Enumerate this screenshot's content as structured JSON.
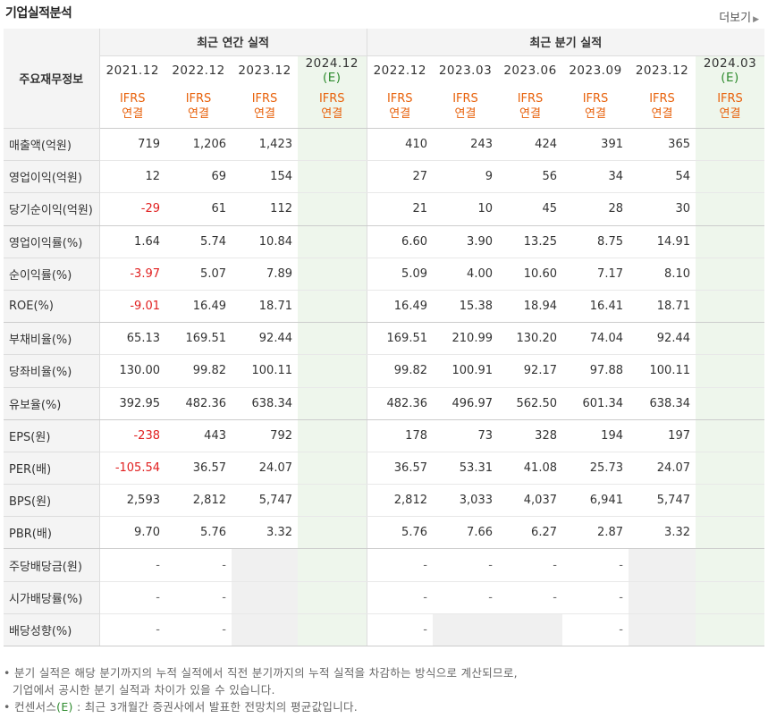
{
  "header": {
    "title": "기업실적분석",
    "more_label": "더보기"
  },
  "table": {
    "row_header_label": "주요재무정보",
    "annual_group_label": "최근 연간 실적",
    "quarter_group_label": "최근 분기 실적",
    "annual_periods": [
      "2021.12",
      "2022.12",
      "2023.12",
      "2024.12"
    ],
    "quarter_periods": [
      "2022.12",
      "2023.03",
      "2023.06",
      "2023.09",
      "2023.12",
      "2024.03"
    ],
    "estimate_mark": "(E)",
    "ifrs_label": "IFRS",
    "consolidated_label": "연결",
    "rows": [
      {
        "label": "매출액(억원)",
        "annual": [
          "719",
          "1,206",
          "1,423",
          ""
        ],
        "quarter": [
          "410",
          "243",
          "424",
          "391",
          "365",
          ""
        ]
      },
      {
        "label": "영업이익(억원)",
        "annual": [
          "12",
          "69",
          "154",
          ""
        ],
        "quarter": [
          "27",
          "9",
          "56",
          "34",
          "54",
          ""
        ]
      },
      {
        "label": "당기순이익(억원)",
        "annual": [
          "-29",
          "61",
          "112",
          ""
        ],
        "quarter": [
          "21",
          "10",
          "45",
          "28",
          "30",
          ""
        ]
      },
      {
        "label": "영업이익률(%)",
        "annual": [
          "1.64",
          "5.74",
          "10.84",
          ""
        ],
        "quarter": [
          "6.60",
          "3.90",
          "13.25",
          "8.75",
          "14.91",
          ""
        ]
      },
      {
        "label": "순이익률(%)",
        "annual": [
          "-3.97",
          "5.07",
          "7.89",
          ""
        ],
        "quarter": [
          "5.09",
          "4.00",
          "10.60",
          "7.17",
          "8.10",
          ""
        ]
      },
      {
        "label": "ROE(%)",
        "annual": [
          "-9.01",
          "16.49",
          "18.71",
          ""
        ],
        "quarter": [
          "16.49",
          "15.38",
          "18.94",
          "16.41",
          "18.71",
          ""
        ]
      },
      {
        "label": "부채비율(%)",
        "annual": [
          "65.13",
          "169.51",
          "92.44",
          ""
        ],
        "quarter": [
          "169.51",
          "210.99",
          "130.20",
          "74.04",
          "92.44",
          ""
        ]
      },
      {
        "label": "당좌비율(%)",
        "annual": [
          "130.00",
          "99.82",
          "100.11",
          ""
        ],
        "quarter": [
          "99.82",
          "100.91",
          "92.17",
          "97.88",
          "100.11",
          ""
        ]
      },
      {
        "label": "유보율(%)",
        "annual": [
          "392.95",
          "482.36",
          "638.34",
          ""
        ],
        "quarter": [
          "482.36",
          "496.97",
          "562.50",
          "601.34",
          "638.34",
          ""
        ]
      },
      {
        "label": "EPS(원)",
        "annual": [
          "-238",
          "443",
          "792",
          ""
        ],
        "quarter": [
          "178",
          "73",
          "328",
          "194",
          "197",
          ""
        ]
      },
      {
        "label": "PER(배)",
        "annual": [
          "-105.54",
          "36.57",
          "24.07",
          ""
        ],
        "quarter": [
          "36.57",
          "53.31",
          "41.08",
          "25.73",
          "24.07",
          ""
        ]
      },
      {
        "label": "BPS(원)",
        "annual": [
          "2,593",
          "2,812",
          "5,747",
          ""
        ],
        "quarter": [
          "2,812",
          "3,033",
          "4,037",
          "6,941",
          "5,747",
          ""
        ]
      },
      {
        "label": "PBR(배)",
        "annual": [
          "9.70",
          "5.76",
          "3.32",
          ""
        ],
        "quarter": [
          "5.76",
          "7.66",
          "6.27",
          "2.87",
          "3.32",
          ""
        ]
      },
      {
        "label": "주당배당금(원)",
        "annual": [
          "-",
          "-",
          "",
          ""
        ],
        "quarter": [
          "-",
          "-",
          "-",
          "-",
          "",
          ""
        ]
      },
      {
        "label": "시가배당률(%)",
        "annual": [
          "-",
          "-",
          "",
          ""
        ],
        "quarter": [
          "-",
          "-",
          "-",
          "-",
          "",
          ""
        ]
      },
      {
        "label": "배당성향(%)",
        "annual": [
          "-",
          "-",
          "",
          ""
        ],
        "quarter": [
          "-",
          "",
          "",
          "-",
          "",
          ""
        ]
      }
    ]
  },
  "notes": {
    "line1": "분기 실적은 해당 분기까지의 누적 실적에서 직전 분기까지의 누적 실적을 차감하는 방식으로 계산되므로,",
    "line2": "기업에서 공시한 분기 실적과 차이가 있을 수 있습니다.",
    "line3_prefix": "컨센서스",
    "line3_e": "(E)",
    "line3_suffix": ": 최근 3개월간 증권사에서 발표한 전망치의 평균값입니다."
  },
  "colors": {
    "negative": "#e12020",
    "ifrs_orange": "#e8620c",
    "estimate_green": "#2e8b2e",
    "estimate_bg": "#eef6ec"
  }
}
